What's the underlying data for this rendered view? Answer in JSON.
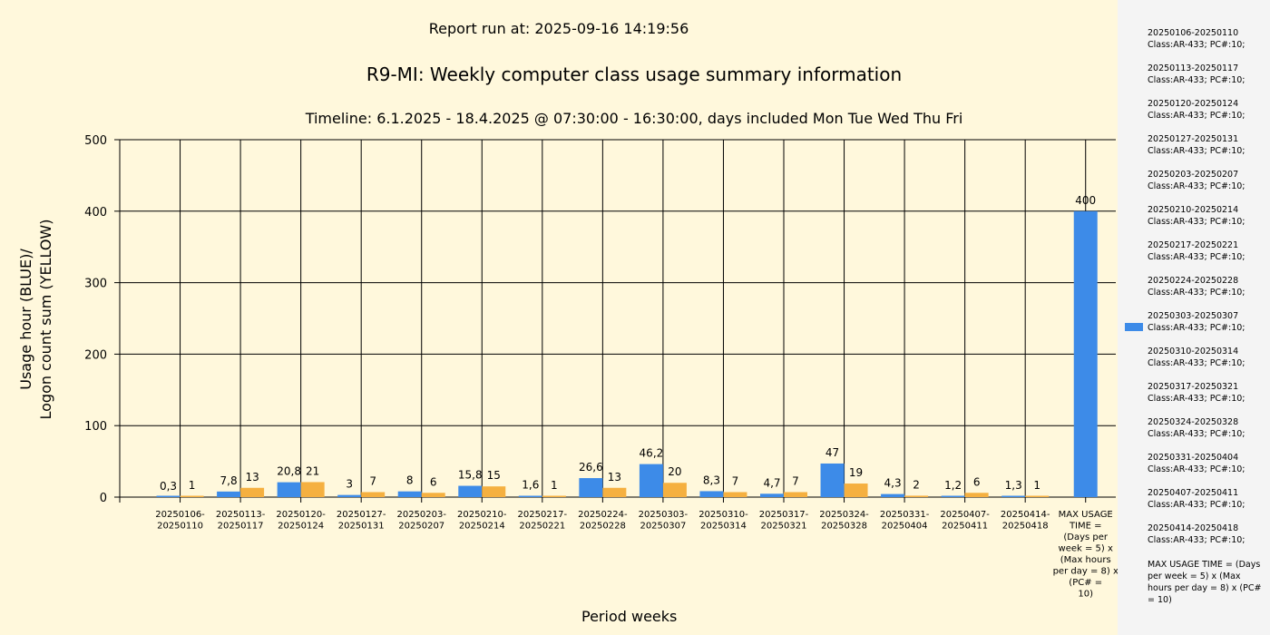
{
  "report_run": "Report run at: 2025-09-16 14:19:56",
  "chart_data": {
    "type": "bar",
    "title": "R9-MI: Weekly computer class usage summary information",
    "subtitle": "Timeline:  6.1.2025  - 18.4.2025  @  07:30:00 -  16:30:00, days included Mon Tue Wed Thu Fri",
    "ylabel_line1": "Usage hour (BLUE)/",
    "ylabel_line2": "Logon count sum (YELLOW)",
    "xlabel": "Period weeks",
    "ylim": [
      0,
      500
    ],
    "yticks": [
      "0",
      "100",
      "200",
      "300",
      "400",
      "500"
    ],
    "colors": {
      "blue": "#3d8be8",
      "yellow": "#f5b040"
    },
    "categories": [
      [
        "20250106-",
        "20250110"
      ],
      [
        "20250113-",
        "20250117"
      ],
      [
        "20250120-",
        "20250124"
      ],
      [
        "20250127-",
        "20250131"
      ],
      [
        "20250203-",
        "20250207"
      ],
      [
        "20250210-",
        "20250214"
      ],
      [
        "20250217-",
        "20250221"
      ],
      [
        "20250224-",
        "20250228"
      ],
      [
        "20250303-",
        "20250307"
      ],
      [
        "20250310-",
        "20250314"
      ],
      [
        "20250317-",
        "20250321"
      ],
      [
        "20250324-",
        "20250328"
      ],
      [
        "20250331-",
        "20250404"
      ],
      [
        "20250407-",
        "20250411"
      ],
      [
        "20250414-",
        "20250418"
      ],
      [
        "MAX USAGE",
        "TIME =",
        "(Days per",
        "week = 5) x",
        "(Max hours",
        "per day = 8) x",
        "(PC# =",
        "10)"
      ]
    ],
    "series": [
      {
        "values": [
          0.3,
          7.8,
          20.8,
          3,
          8,
          15.8,
          1.6,
          26.6,
          46.2,
          8.3,
          4.7,
          47,
          4.3,
          1.2,
          1.3,
          400
        ],
        "labels": [
          "0,3",
          "7,8",
          "20,8",
          "3",
          "8",
          "15,8",
          "1,6",
          "26,6",
          "46,2",
          "8,3",
          "4,7",
          "47",
          "4,3",
          "1,2",
          "1,3",
          "400"
        ]
      },
      {
        "values": [
          1,
          13,
          21,
          7,
          6,
          15,
          1,
          13,
          20,
          7,
          7,
          19,
          2,
          6,
          1,
          null
        ],
        "labels": [
          "1",
          "13",
          "21",
          "7",
          "6",
          "15",
          "1",
          "13",
          "20",
          "7",
          "7",
          "19",
          "2",
          "6",
          "1",
          ""
        ]
      }
    ],
    "grid": true
  },
  "legend": {
    "items": [
      {
        "line1": "20250106-20250110",
        "line2": "Class:AR-433; PC#:10;",
        "swatch": false
      },
      {
        "line1": "20250113-20250117",
        "line2": "Class:AR-433; PC#:10;",
        "swatch": false
      },
      {
        "line1": "20250120-20250124",
        "line2": "Class:AR-433; PC#:10;",
        "swatch": false
      },
      {
        "line1": "20250127-20250131",
        "line2": "Class:AR-433; PC#:10;",
        "swatch": false
      },
      {
        "line1": "20250203-20250207",
        "line2": "Class:AR-433; PC#:10;",
        "swatch": false
      },
      {
        "line1": "20250210-20250214",
        "line2": "Class:AR-433; PC#:10;",
        "swatch": false
      },
      {
        "line1": "20250217-20250221",
        "line2": "Class:AR-433; PC#:10;",
        "swatch": false
      },
      {
        "line1": "20250224-20250228",
        "line2": "Class:AR-433; PC#:10;",
        "swatch": false
      },
      {
        "line1": "20250303-20250307",
        "line2": "Class:AR-433; PC#:10;",
        "swatch": true
      },
      {
        "line1": "20250310-20250314",
        "line2": "Class:AR-433; PC#:10;",
        "swatch": false
      },
      {
        "line1": "20250317-20250321",
        "line2": "Class:AR-433; PC#:10;",
        "swatch": false
      },
      {
        "line1": "20250324-20250328",
        "line2": "Class:AR-433; PC#:10;",
        "swatch": false
      },
      {
        "line1": "20250331-20250404",
        "line2": "Class:AR-433; PC#:10;",
        "swatch": false
      },
      {
        "line1": "20250407-20250411",
        "line2": "Class:AR-433; PC#:10;",
        "swatch": false
      },
      {
        "line1": "20250414-20250418",
        "line2": "Class:AR-433; PC#:10;",
        "swatch": false
      }
    ],
    "max_text": "MAX USAGE TIME = (Days per week = 5) x (Max hours per day = 8) x (PC# = 10)"
  }
}
